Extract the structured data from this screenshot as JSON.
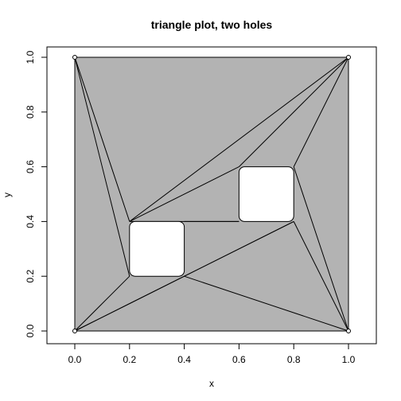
{
  "chart_data": {
    "type": "scatter",
    "title": "triangle plot, two holes",
    "xlabel": "x",
    "ylabel": "y",
    "xlim": [
      -0.1,
      1.1
    ],
    "ylim": [
      -0.05,
      1.05
    ],
    "x_ticks": [
      0.0,
      0.2,
      0.4,
      0.6,
      0.8,
      1.0
    ],
    "x_tick_labels": [
      "0.0",
      "0.2",
      "0.4",
      "0.6",
      "0.8",
      "1.0"
    ],
    "y_ticks": [
      0.0,
      0.2,
      0.4,
      0.6,
      0.8,
      1.0
    ],
    "y_tick_labels": [
      "0.0",
      "0.2",
      "0.4",
      "0.6",
      "0.8",
      "1.0"
    ],
    "grid": false,
    "colors": {
      "fill": "#b3b3b3",
      "hole": "#ffffff",
      "line": "#000000",
      "point": "#000000"
    },
    "domain_polygon": [
      [
        0,
        0
      ],
      [
        1,
        0
      ],
      [
        1,
        1
      ],
      [
        0,
        1
      ]
    ],
    "holes": [
      [
        [
          0.2,
          0.2
        ],
        [
          0.4,
          0.2
        ],
        [
          0.4,
          0.4
        ],
        [
          0.2,
          0.4
        ]
      ],
      [
        [
          0.6,
          0.4
        ],
        [
          0.8,
          0.4
        ],
        [
          0.8,
          0.6
        ],
        [
          0.6,
          0.6
        ]
      ]
    ],
    "points": [
      [
        0,
        0
      ],
      [
        1,
        0
      ],
      [
        1,
        1
      ],
      [
        0,
        1
      ]
    ],
    "edges": [
      [
        [
          0,
          0
        ],
        [
          1,
          0
        ]
      ],
      [
        [
          1,
          0
        ],
        [
          1,
          1
        ]
      ],
      [
        [
          1,
          1
        ],
        [
          0,
          1
        ]
      ],
      [
        [
          0,
          1
        ],
        [
          0,
          0
        ]
      ],
      [
        [
          0,
          1
        ],
        [
          0.2,
          0.2
        ]
      ],
      [
        [
          0,
          1
        ],
        [
          0.2,
          0.4
        ]
      ],
      [
        [
          0,
          0
        ],
        [
          0.2,
          0.2
        ]
      ],
      [
        [
          0,
          0
        ],
        [
          0.4,
          0.2
        ]
      ],
      [
        [
          0,
          0
        ],
        [
          0.8,
          0.4
        ]
      ],
      [
        [
          0.4,
          0.2
        ],
        [
          1,
          0
        ]
      ],
      [
        [
          0.8,
          0.4
        ],
        [
          1,
          0
        ]
      ],
      [
        [
          0.8,
          0.6
        ],
        [
          1,
          0
        ]
      ],
      [
        [
          0.4,
          0.2
        ],
        [
          0.8,
          0.4
        ]
      ],
      [
        [
          0.4,
          0.4
        ],
        [
          0.6,
          0.4
        ]
      ],
      [
        [
          0.2,
          0.4
        ],
        [
          1,
          1
        ]
      ],
      [
        [
          0.2,
          0.4
        ],
        [
          0.6,
          0.6
        ]
      ],
      [
        [
          0.2,
          0.4
        ],
        [
          0.6,
          0.4
        ]
      ],
      [
        [
          0.6,
          0.6
        ],
        [
          1,
          1
        ]
      ],
      [
        [
          0.8,
          0.6
        ],
        [
          1,
          1
        ]
      ]
    ]
  }
}
